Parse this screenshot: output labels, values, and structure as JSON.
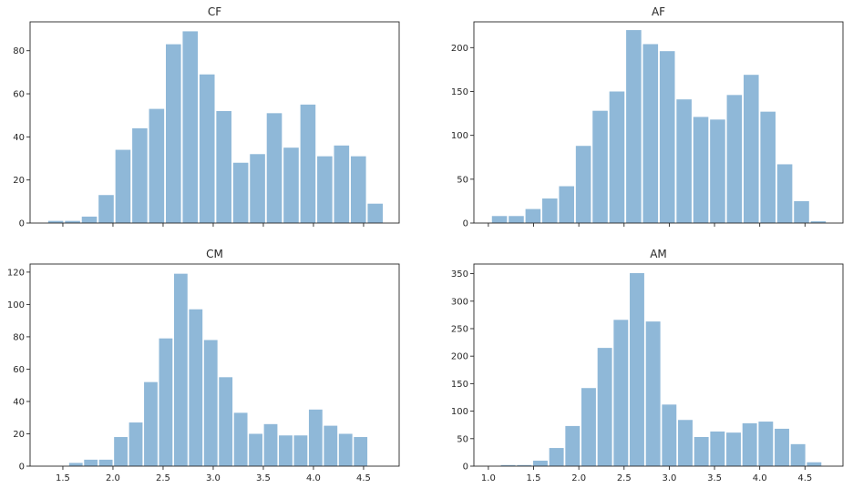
{
  "chart_data": [
    {
      "type": "bar",
      "title": "CF",
      "bin_range": [
        1.345,
        4.7
      ],
      "values": [
        1,
        1,
        3,
        13,
        34,
        44,
        53,
        83,
        89,
        69,
        52,
        28,
        32,
        51,
        35,
        55,
        31,
        36,
        31,
        9
      ],
      "xlim": [
        1.173,
        4.855
      ],
      "ylim": [
        0,
        93.4
      ],
      "xticks": [
        1.5,
        2.0,
        2.5,
        3.0,
        3.5,
        4.0,
        4.5
      ],
      "xtick_labels_visible": false,
      "yticks": [
        0,
        20,
        40,
        60,
        80
      ],
      "color": "#8fb8d8",
      "grid": false
    },
    {
      "type": "bar",
      "title": "AF",
      "bin_range": [
        1.03,
        4.74
      ],
      "values": [
        8,
        8,
        16,
        28,
        42,
        88,
        128,
        150,
        220,
        204,
        196,
        141,
        121,
        118,
        146,
        169,
        127,
        67,
        25,
        2
      ],
      "xlim": [
        0.84,
        4.92
      ],
      "ylim": [
        0,
        229.4
      ],
      "xticks": [
        1.0,
        1.5,
        2.0,
        2.5,
        3.0,
        3.5,
        4.0,
        4.5
      ],
      "xtick_labels_visible": false,
      "yticks": [
        0,
        50,
        100,
        150,
        200
      ],
      "color": "#8fb8d8",
      "grid": false
    },
    {
      "type": "bar",
      "title": "CM",
      "bin_range": [
        1.555,
        4.545
      ],
      "values": [
        2,
        4,
        4,
        18,
        27,
        52,
        79,
        119,
        97,
        78,
        55,
        33,
        20,
        26,
        19,
        19,
        35,
        25,
        20,
        18
      ],
      "xlim": [
        1.173,
        4.855
      ],
      "ylim": [
        0,
        125
      ],
      "xticks": [
        1.5,
        2.0,
        2.5,
        3.0,
        3.5,
        4.0,
        4.5
      ],
      "xtick_labels": [
        "1.5",
        "2.0",
        "2.5",
        "3.0",
        "3.5",
        "4.0",
        "4.5"
      ],
      "xtick_labels_visible": true,
      "yticks": [
        0,
        20,
        40,
        60,
        80,
        100,
        120
      ],
      "color": "#8fb8d8",
      "grid": false
    },
    {
      "type": "bar",
      "title": "AM",
      "bin_range": [
        1.13,
        4.69
      ],
      "values": [
        2,
        2,
        10,
        33,
        73,
        142,
        215,
        266,
        351,
        263,
        112,
        84,
        53,
        63,
        61,
        78,
        81,
        68,
        40,
        7
      ],
      "xlim": [
        0.84,
        4.92
      ],
      "ylim": [
        0,
        367.5
      ],
      "xticks": [
        1.0,
        1.5,
        2.0,
        2.5,
        3.0,
        3.5,
        4.0,
        4.5
      ],
      "xtick_labels": [
        "1.0",
        "1.5",
        "2.0",
        "2.5",
        "3.0",
        "3.5",
        "4.0",
        "4.5"
      ],
      "xtick_labels_visible": true,
      "yticks": [
        0,
        50,
        100,
        150,
        200,
        250,
        300,
        350
      ],
      "color": "#8fb8d8",
      "grid": false
    }
  ]
}
